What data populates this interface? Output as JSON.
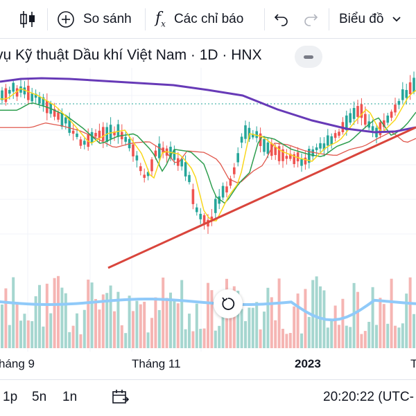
{
  "toolbar": {
    "indicators_icon": "candles-icon",
    "compare_label": "So sánh",
    "indicators_label": "Các chỉ báo",
    "undo_icon": "undo-icon",
    "redo_icon": "redo-icon",
    "chart_type_label": "Biểu đồ"
  },
  "header": {
    "title": "vụ Kỹ thuật Dầu khí Việt Nam · 1D · HNX"
  },
  "x_axis": {
    "labels": [
      "háng 9",
      "Tháng 11",
      "2023",
      "T"
    ]
  },
  "bottom_bar": {
    "intervals": [
      "1p",
      "5n",
      "1n"
    ],
    "time": "20:20:22 (UTC-"
  },
  "colors": {
    "up": "#26a69a",
    "down": "#ef5350",
    "ma_slow": "#673ab7",
    "ma_fast": "#f9d71c",
    "ma_mid": "#2e9e4f",
    "ma_red": "#e0584d",
    "trendline": "#d9453c",
    "volume_ma": "#90caf9"
  }
}
